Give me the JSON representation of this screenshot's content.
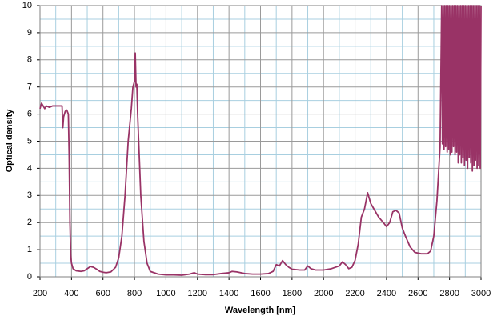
{
  "chart_data": {
    "type": "line",
    "xlabel": "Wavelength [nm]",
    "ylabel": "Optical density",
    "xlim": [
      200,
      3000
    ],
    "ylim": [
      0,
      10
    ],
    "xticks": [
      200,
      400,
      600,
      800,
      1000,
      1200,
      1400,
      1600,
      1800,
      2000,
      2200,
      2400,
      2600,
      2800,
      3000
    ],
    "yticks": [
      0,
      1,
      2,
      3,
      4,
      5,
      6,
      7,
      8,
      9,
      10
    ],
    "grid": true,
    "series": [
      {
        "color": "#993366",
        "x": [
          200,
          210,
          220,
          230,
          240,
          260,
          280,
          300,
          320,
          340,
          345,
          350,
          360,
          370,
          380,
          385,
          390,
          395,
          400,
          410,
          430,
          460,
          480,
          500,
          520,
          540,
          560,
          580,
          600,
          620,
          650,
          680,
          700,
          720,
          740,
          760,
          780,
          790,
          800,
          805,
          810,
          815,
          820,
          830,
          840,
          860,
          880,
          900,
          950,
          1000,
          1050,
          1100,
          1150,
          1180,
          1200,
          1250,
          1300,
          1350,
          1400,
          1420,
          1450,
          1500,
          1550,
          1600,
          1650,
          1680,
          1700,
          1720,
          1740,
          1760,
          1780,
          1800,
          1850,
          1880,
          1900,
          1920,
          1950,
          2000,
          2050,
          2100,
          2120,
          2140,
          2160,
          2180,
          2200,
          2220,
          2240,
          2260,
          2280,
          2300,
          2320,
          2350,
          2380,
          2400,
          2420,
          2440,
          2460,
          2480,
          2500,
          2520,
          2550,
          2580,
          2620,
          2660,
          2680,
          2700,
          2720,
          2740,
          2750,
          2755,
          2760,
          2765,
          2770,
          2775,
          2780,
          2785,
          2790,
          2795,
          2800,
          2805,
          2810,
          2815,
          2820,
          2825,
          2830,
          2835,
          2840,
          2845,
          2850,
          2855,
          2860,
          2865,
          2870,
          2875,
          2880,
          2885,
          2890,
          2895,
          2900,
          2905,
          2910,
          2915,
          2920,
          2925,
          2930,
          2935,
          2940,
          2945,
          2950,
          2955,
          2960,
          2965,
          2970,
          2975,
          2980,
          2985,
          2990,
          2995,
          3000
        ],
        "values": [
          6.2,
          6.4,
          6.3,
          6.2,
          6.3,
          6.25,
          6.3,
          6.3,
          6.3,
          6.3,
          5.5,
          5.9,
          6.1,
          6.15,
          6.0,
          4.5,
          2.0,
          0.8,
          0.5,
          0.3,
          0.22,
          0.2,
          0.22,
          0.3,
          0.38,
          0.35,
          0.28,
          0.2,
          0.17,
          0.15,
          0.18,
          0.35,
          0.7,
          1.5,
          3.0,
          5.0,
          6.2,
          7.0,
          7.2,
          8.25,
          7.0,
          7.1,
          6.0,
          4.5,
          3.0,
          1.3,
          0.5,
          0.2,
          0.1,
          0.07,
          0.07,
          0.06,
          0.1,
          0.15,
          0.1,
          0.08,
          0.08,
          0.12,
          0.15,
          0.2,
          0.18,
          0.12,
          0.1,
          0.1,
          0.12,
          0.2,
          0.45,
          0.4,
          0.6,
          0.45,
          0.35,
          0.28,
          0.25,
          0.25,
          0.4,
          0.3,
          0.25,
          0.25,
          0.3,
          0.4,
          0.55,
          0.45,
          0.3,
          0.35,
          0.6,
          1.2,
          2.2,
          2.5,
          3.1,
          2.7,
          2.5,
          2.2,
          2.0,
          1.85,
          2.0,
          2.4,
          2.45,
          2.35,
          1.8,
          1.5,
          1.1,
          0.9,
          0.85,
          0.85,
          0.95,
          1.5,
          2.8,
          4.8,
          10,
          4.9,
          10,
          4.7,
          10,
          4.8,
          10,
          4.6,
          10,
          4.7,
          10,
          4.5,
          10,
          4.6,
          10,
          4.8,
          10,
          4.5,
          10,
          4.6,
          10,
          4.2,
          10,
          4.5,
          10,
          4.2,
          10,
          4.4,
          10,
          4.1,
          10,
          4.3,
          10,
          4.0,
          10,
          4.4,
          10,
          4.2,
          10,
          3.9,
          10,
          4.1,
          10,
          4.3,
          10,
          4.0,
          10,
          4.1,
          10,
          4.0,
          10
        ]
      }
    ]
  }
}
